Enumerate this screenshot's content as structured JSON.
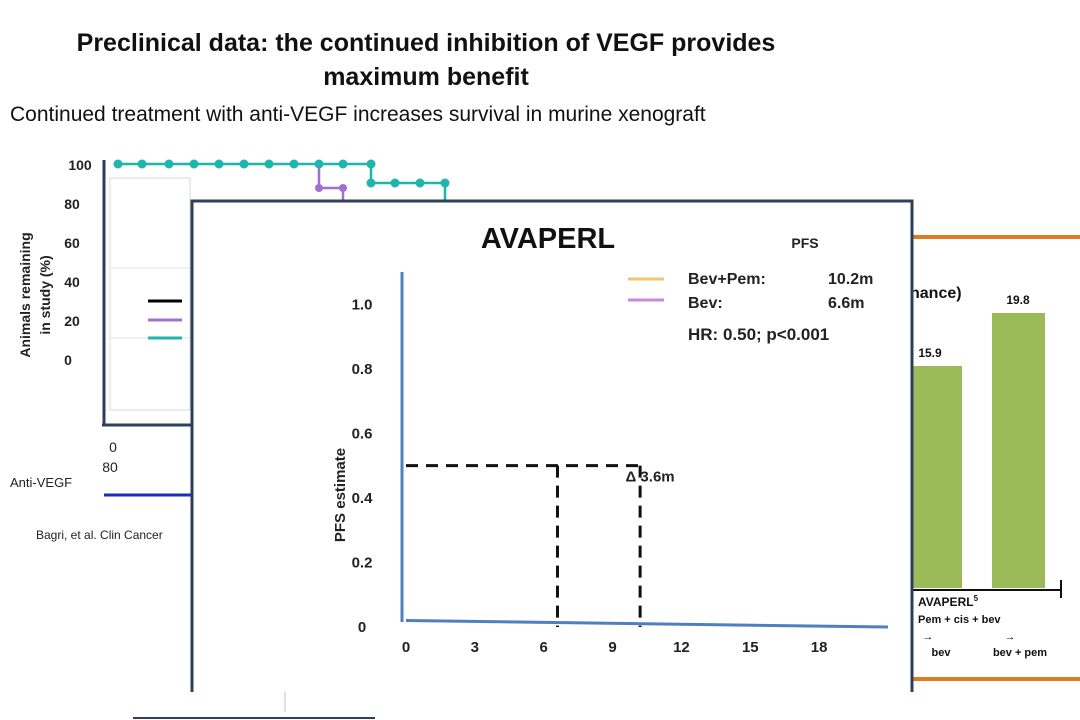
{
  "slide": {
    "title_line1": "Preclinical data: the continued inhibition of VEGF provides",
    "title_line2": "maximum benefit",
    "subtitle": "Continued treatment with anti-VEGF  increases survival in murine xenograft"
  },
  "background_chart": {
    "y_label_line1": "Animals remaining",
    "y_label_line2": "in study (%)",
    "y_ticks": [
      "100",
      "80",
      "60",
      "40",
      "20",
      "0"
    ],
    "x_tick_lines": [
      "0",
      "80"
    ],
    "legend_label": "Anti-VEGF",
    "citation": "Bagri, et al. Clin Cancer",
    "colors": {
      "axis": "#2e3f5c",
      "teal": "#1fb5ad",
      "purple": "#a070d0",
      "black": "#000000",
      "blue": "#1a2bbf"
    }
  },
  "right_panel": {
    "title_fragment": "nance)",
    "bar_values": [
      "15.9",
      "19.8"
    ],
    "group_label": "AVAPERL",
    "group_superscript": "5",
    "regimen": "Pem + cis + bev",
    "arm_labels": [
      "bev",
      "bev + pem"
    ],
    "colors": {
      "bar": "#9bbb59",
      "border": "#e07b22"
    }
  },
  "chart_data": {
    "type": "line",
    "title": "AVAPERL",
    "legend_header": "PFS",
    "legend": [
      {
        "name": "Bev+Pem:",
        "value": "10.2m",
        "color": "#f5c46a"
      },
      {
        "name": "Bev:",
        "value": "6.6m",
        "color": "#c88ae0"
      }
    ],
    "hr_text": "HR: 0.50; p<0.001",
    "ylabel": "PFS estimate",
    "xlabel": "",
    "y_ticks": [
      "1.0",
      "0.8",
      "0.6",
      "0.4",
      "0.2",
      "0"
    ],
    "x_ticks": [
      "0",
      "3",
      "6",
      "9",
      "12",
      "15",
      "18"
    ],
    "xlim": [
      0,
      21
    ],
    "ylim": [
      0,
      1.1
    ],
    "median_y": 0.5,
    "median_x": [
      6.6,
      10.2
    ],
    "delta_label": "Δ 3.6m",
    "series": [
      {
        "x": [
          0,
          21
        ],
        "y": [
          0.02,
          0.0
        ],
        "color": "#4f7fc0"
      }
    ]
  }
}
